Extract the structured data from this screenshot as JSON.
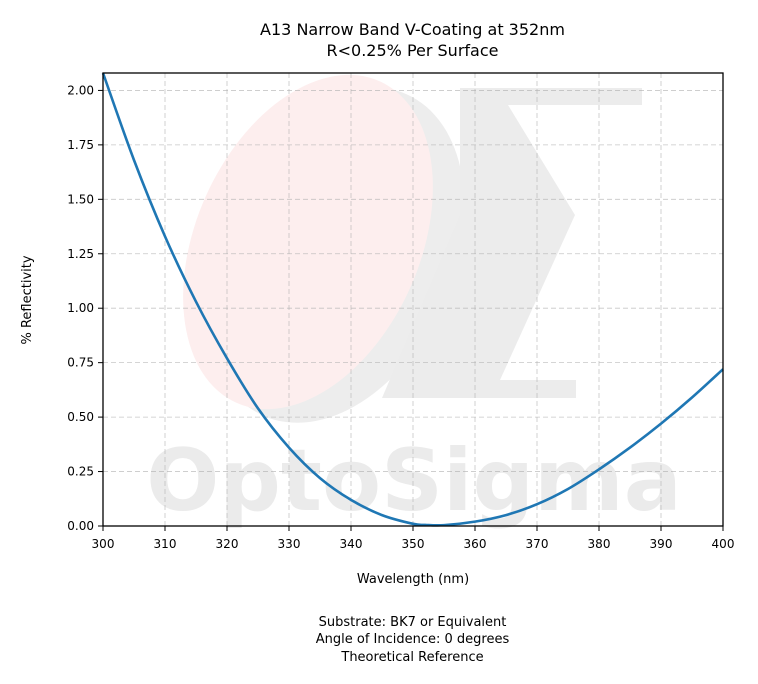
{
  "chart_data": {
    "type": "line",
    "title": [
      "A13 Narrow Band V-Coating at 352nm",
      "R<0.25% Per Surface"
    ],
    "xlabel": "Wavelength (nm)",
    "ylabel": "% Reflectivity",
    "xlim": [
      300,
      400
    ],
    "ylim": [
      0,
      2.08
    ],
    "xticks": [
      300,
      310,
      320,
      330,
      340,
      350,
      360,
      370,
      380,
      390,
      400
    ],
    "xtick_labels": [
      "300",
      "310",
      "320",
      "330",
      "340",
      "350",
      "360",
      "370",
      "380",
      "390",
      "400"
    ],
    "yticks": [
      0,
      0.25,
      0.5,
      0.75,
      1.0,
      1.25,
      1.5,
      1.75,
      2.0
    ],
    "ytick_labels": [
      "0.00",
      "0.25",
      "0.50",
      "0.75",
      "1.00",
      "1.25",
      "1.50",
      "1.75",
      "2.00"
    ],
    "grid": true,
    "grid_style": "dashed",
    "series": [
      {
        "color": "#1f77b4",
        "x": [
          300,
          305,
          310,
          315,
          320,
          325,
          330,
          335,
          340,
          345,
          350,
          352,
          355,
          360,
          365,
          370,
          375,
          380,
          385,
          390,
          395,
          400
        ],
        "y": [
          2.08,
          1.68,
          1.33,
          1.03,
          0.77,
          0.54,
          0.36,
          0.22,
          0.12,
          0.05,
          0.01,
          0.005,
          0.004,
          0.02,
          0.05,
          0.1,
          0.17,
          0.26,
          0.36,
          0.47,
          0.59,
          0.72
        ]
      }
    ],
    "watermark": "OptoSigma",
    "footer": [
      "Substrate: BK7 or Equivalent",
      "Angle of Incidence: 0 degrees",
      "Theoretical Reference"
    ]
  }
}
